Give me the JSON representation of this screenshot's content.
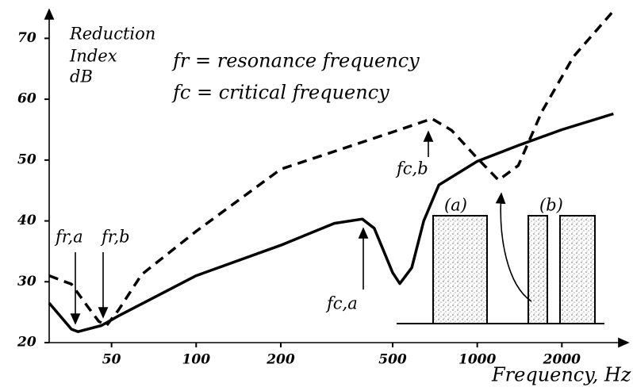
{
  "chart_data": {
    "type": "line",
    "ylabel": [
      "Reduction",
      "Index",
      "dB"
    ],
    "xlabel": "Frequency, Hz",
    "annotations": [
      "fr = resonance frequency",
      "fc = critical frequency",
      "fr,a",
      "fr,b",
      "fc,a",
      "fc,b",
      "(a)",
      "(b)"
    ],
    "xscale": "log",
    "xlim": [
      30,
      3400
    ],
    "xticks": [
      50,
      100,
      200,
      500,
      1000,
      2000
    ],
    "ylim": [
      20,
      75
    ],
    "yticks": [
      20,
      30,
      40,
      50,
      60,
      70
    ],
    "series": [
      {
        "style": "solid",
        "color": "#000000",
        "x": [
          30,
          36,
          38,
          46,
          53,
          100,
          200,
          310,
          390,
          430,
          500,
          530,
          585,
          645,
          730,
          1000,
          1400,
          2000,
          3050
        ],
        "values": [
          26.5,
          22.2,
          21.8,
          22.8,
          24.4,
          31,
          36,
          39.6,
          40.3,
          38.8,
          31.5,
          29.7,
          32.3,
          40,
          45.9,
          49.8,
          52.4,
          55,
          57.6
        ]
      },
      {
        "style": "dashed",
        "color": "#000000",
        "x": [
          30,
          36,
          41,
          45,
          48,
          53,
          64,
          100,
          200,
          500,
          690,
          810,
          1000,
          1190,
          1400,
          1700,
          2200,
          3050
        ],
        "values": [
          31,
          29.6,
          26,
          23.5,
          22.8,
          25.4,
          31.2,
          38.3,
          48.5,
          54.6,
          56.8,
          54.9,
          50.3,
          46.7,
          49.1,
          58,
          67,
          74.5
        ]
      }
    ]
  }
}
